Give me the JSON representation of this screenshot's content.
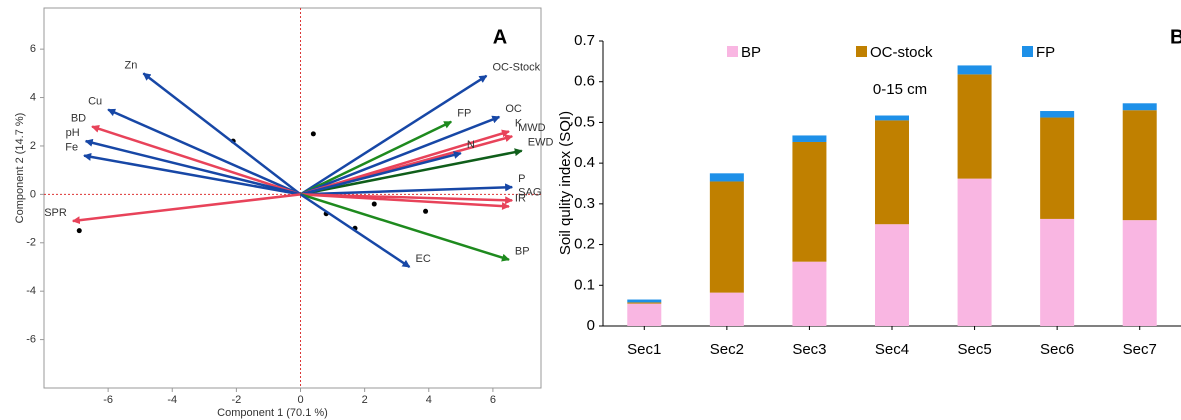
{
  "chart_data": [
    {
      "type": "biplot",
      "label": "A",
      "xlabel": "Component 1 (70.1 %)",
      "ylabel": "Component 2 (14.7 %)",
      "xlim": [
        -8,
        7.5
      ],
      "ylim": [
        -8,
        7.7
      ],
      "xticks": [
        -6,
        -4,
        -2,
        0,
        2,
        4,
        6
      ],
      "yticks": [
        -6,
        -4,
        -2,
        0,
        2,
        4,
        6
      ],
      "vectors": [
        {
          "name": "Zn",
          "x": -4.9,
          "y": 5.0,
          "color": "#1747a6"
        },
        {
          "name": "Cu",
          "x": -6.0,
          "y": 3.5,
          "color": "#1747a6"
        },
        {
          "name": "BD",
          "x": -6.5,
          "y": 2.8,
          "color": "#e8435a"
        },
        {
          "name": "pH",
          "x": -6.7,
          "y": 2.2,
          "color": "#1747a6"
        },
        {
          "name": "Fe",
          "x": -6.75,
          "y": 1.6,
          "color": "#1747a6"
        },
        {
          "name": "SPR",
          "x": -7.1,
          "y": -1.1,
          "color": "#e8435a"
        },
        {
          "name": "OC-Stock",
          "x": 5.8,
          "y": 4.9,
          "color": "#1747a6"
        },
        {
          "name": "FP",
          "x": 4.7,
          "y": 3.0,
          "color": "#1e8a1e"
        },
        {
          "name": "OC",
          "x": 6.2,
          "y": 3.2,
          "color": "#1747a6"
        },
        {
          "name": "K",
          "x": 6.5,
          "y": 2.6,
          "color": "#e8435a"
        },
        {
          "name": "MWD",
          "x": 6.6,
          "y": 2.4,
          "color": "#e8435a"
        },
        {
          "name": "EWD",
          "x": 6.9,
          "y": 1.8,
          "color": "#0f5e1a"
        },
        {
          "name": "N",
          "x": 5.0,
          "y": 1.7,
          "color": "#1747a6"
        },
        {
          "name": "P",
          "x": 6.6,
          "y": 0.3,
          "color": "#1747a6"
        },
        {
          "name": "SAG",
          "x": 6.6,
          "y": -0.25,
          "color": "#e8435a"
        },
        {
          "name": "IR",
          "x": 6.5,
          "y": -0.5,
          "color": "#e8435a"
        },
        {
          "name": "BP",
          "x": 6.5,
          "y": -2.7,
          "color": "#1e8a1e"
        },
        {
          "name": "EC",
          "x": 3.4,
          "y": -3.0,
          "color": "#1747a6"
        }
      ],
      "points": {
        "x": [
          -2.1,
          0.4,
          0.8,
          2.3,
          1.7,
          3.9,
          -6.9
        ],
        "y": [
          2.2,
          2.5,
          -0.8,
          -0.4,
          -1.4,
          -0.7,
          -1.5
        ]
      }
    },
    {
      "type": "stacked-bar",
      "label": "B",
      "ylabel": "Soil qulity index (SQI)",
      "annotation": "0-15 cm",
      "categories": [
        "Sec1",
        "Sec2",
        "Sec3",
        "Sec4",
        "Sec5",
        "Sec6",
        "Sec7"
      ],
      "ylim": [
        0,
        0.7
      ],
      "yticks": [
        0,
        0.1,
        0.2,
        0.3,
        0.4,
        0.5,
        0.6,
        0.7
      ],
      "series": [
        {
          "name": "BP",
          "color": "#f9b6e2",
          "values": [
            0.055,
            0.082,
            0.158,
            0.25,
            0.362,
            0.263,
            0.26
          ]
        },
        {
          "name": "OC-stock",
          "color": "#c08000",
          "values": [
            0.003,
            0.273,
            0.294,
            0.255,
            0.256,
            0.249,
            0.27
          ]
        },
        {
          "name": "FP",
          "color": "#1e90e8",
          "values": [
            0.007,
            0.02,
            0.016,
            0.012,
            0.022,
            0.016,
            0.017
          ]
        }
      ]
    }
  ]
}
